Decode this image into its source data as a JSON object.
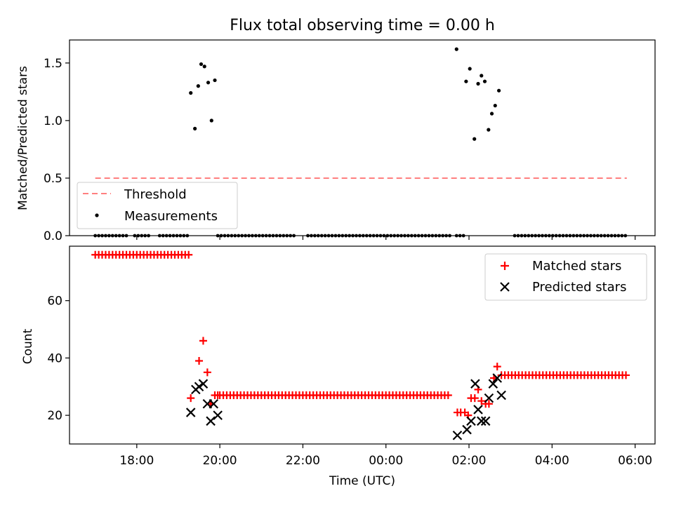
{
  "title": "Flux total observing time = 0.00 h",
  "chart_data": [
    {
      "type": "scatter",
      "panel": "top",
      "title": "Flux total observing time = 0.00 h",
      "xlabel": "",
      "ylabel": "Matched/Predicted stars",
      "x_unit": "hours since 17:00 UTC",
      "xlim": [
        -0.62,
        13.48
      ],
      "ylim": [
        0.0,
        1.7
      ],
      "yticks": [
        0.0,
        0.5,
        1.0,
        1.5
      ],
      "ytick_labels": [
        "0.0",
        "0.5",
        "1.0",
        "1.5"
      ],
      "threshold": {
        "name": "Threshold",
        "value": 0.5,
        "x_range": [
          0.0,
          12.8
        ],
        "color": "#ff7f7f",
        "style": "dashed"
      },
      "series": [
        {
          "name": "Measurements",
          "color": "#000000",
          "points": [
            [
              2.3,
              1.24
            ],
            [
              2.4,
              0.93
            ],
            [
              2.48,
              1.3
            ],
            [
              2.55,
              1.49
            ],
            [
              2.63,
              1.47
            ],
            [
              2.72,
              1.33
            ],
            [
              2.8,
              1.0
            ],
            [
              2.88,
              1.35
            ],
            [
              8.7,
              1.62
            ],
            [
              8.93,
              1.34
            ],
            [
              9.02,
              1.45
            ],
            [
              9.13,
              0.84
            ],
            [
              9.22,
              1.32
            ],
            [
              9.3,
              1.39
            ],
            [
              9.38,
              1.34
            ],
            [
              9.47,
              0.92
            ],
            [
              9.55,
              1.06
            ],
            [
              9.63,
              1.13
            ],
            [
              9.72,
              1.26
            ]
          ],
          "zero_segments": [
            [
              0.0,
              0.75
            ],
            [
              0.95,
              1.3
            ],
            [
              1.55,
              2.28
            ],
            [
              2.95,
              4.85
            ],
            [
              5.12,
              8.55
            ],
            [
              8.7,
              8.88
            ],
            [
              10.1,
              12.82
            ]
          ]
        }
      ],
      "legend": {
        "position": "lower-left",
        "entries": [
          "Threshold",
          "Measurements"
        ]
      }
    },
    {
      "type": "scatter",
      "panel": "bottom",
      "xlabel": "Time (UTC)",
      "ylabel": "Count",
      "x_unit": "hours since 17:00 UTC",
      "xlim": [
        -0.62,
        13.48
      ],
      "ylim": [
        10,
        79
      ],
      "yticks": [
        20,
        40,
        60
      ],
      "ytick_labels": [
        "20",
        "40",
        "60"
      ],
      "xticks": [
        1,
        3,
        5,
        7,
        9,
        11,
        13
      ],
      "xtick_labels": [
        "18:00",
        "20:00",
        "22:00",
        "00:00",
        "02:00",
        "04:00",
        "06:00"
      ],
      "series": [
        {
          "name": "Matched stars",
          "marker": "plus",
          "color": "#ff0000",
          "segments": [
            [
              0.0,
              2.28,
              76
            ],
            [
              3.0,
              8.55,
              27
            ],
            [
              9.78,
              12.82,
              34
            ]
          ],
          "points": [
            [
              2.3,
              26
            ],
            [
              2.5,
              39
            ],
            [
              2.6,
              46
            ],
            [
              2.7,
              35
            ],
            [
              2.78,
              24
            ],
            [
              2.88,
              27
            ],
            [
              2.95,
              27
            ],
            [
              8.72,
              21
            ],
            [
              8.8,
              21
            ],
            [
              8.9,
              21
            ],
            [
              8.98,
              20
            ],
            [
              9.05,
              26
            ],
            [
              9.14,
              26
            ],
            [
              9.22,
              29
            ],
            [
              9.3,
              25
            ],
            [
              9.4,
              24
            ],
            [
              9.48,
              24
            ],
            [
              9.6,
              33
            ],
            [
              9.68,
              37
            ]
          ]
        },
        {
          "name": "Predicted stars",
          "marker": "x",
          "color": "#000000",
          "points": [
            [
              2.3,
              21
            ],
            [
              2.42,
              29
            ],
            [
              2.5,
              30
            ],
            [
              2.6,
              31
            ],
            [
              2.7,
              24
            ],
            [
              2.78,
              18
            ],
            [
              2.85,
              24
            ],
            [
              2.95,
              20
            ],
            [
              8.72,
              13
            ],
            [
              8.95,
              15
            ],
            [
              9.05,
              18
            ],
            [
              9.15,
              31
            ],
            [
              9.22,
              22
            ],
            [
              9.3,
              18
            ],
            [
              9.4,
              18
            ],
            [
              9.48,
              26
            ],
            [
              9.58,
              31
            ],
            [
              9.68,
              33
            ],
            [
              9.78,
              27
            ]
          ]
        }
      ],
      "legend": {
        "position": "top-right",
        "entries": [
          "Matched stars",
          "Predicted stars"
        ]
      }
    }
  ]
}
